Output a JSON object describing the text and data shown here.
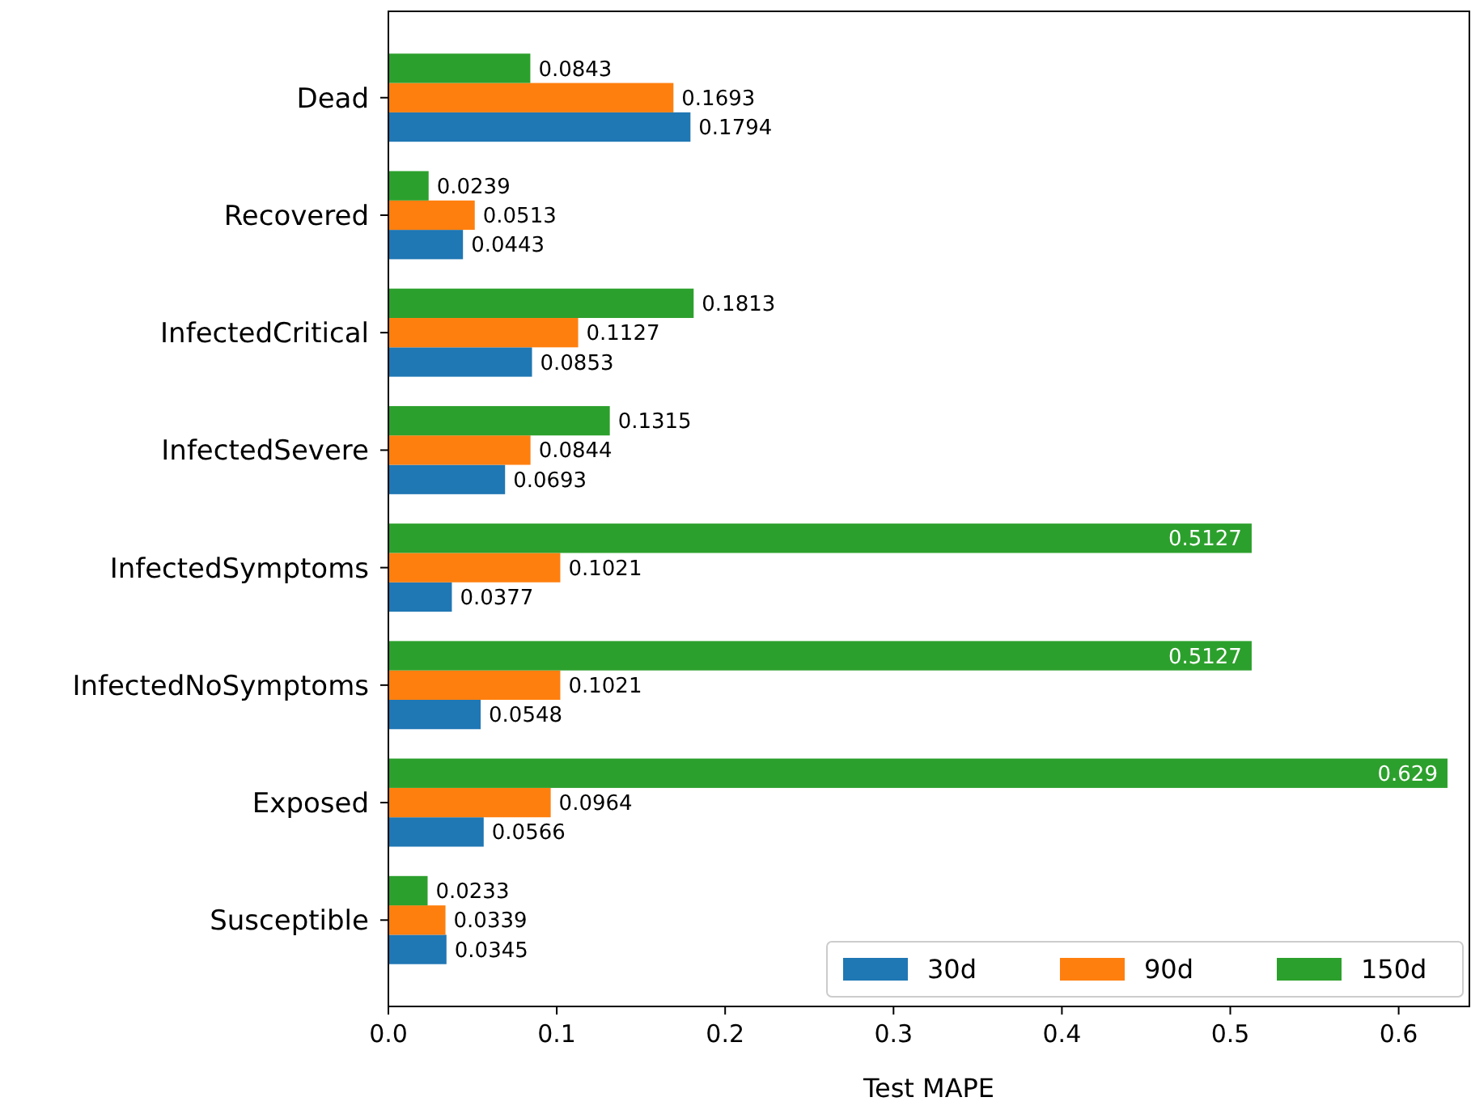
{
  "chart_data": {
    "type": "bar",
    "orientation": "horizontal",
    "xlabel": "Test MAPE",
    "categories": [
      "Dead",
      "Recovered",
      "InfectedCritical",
      "InfectedSevere",
      "InfectedSymptoms",
      "InfectedNoSymptoms",
      "Exposed",
      "Susceptible"
    ],
    "series": [
      {
        "name": "30d",
        "color": "#1f77b4",
        "values": [
          0.1794,
          0.0443,
          0.0853,
          0.0693,
          0.0377,
          0.0548,
          0.0566,
          0.0345
        ]
      },
      {
        "name": "90d",
        "color": "#ff7f0e",
        "values": [
          0.1693,
          0.0513,
          0.1127,
          0.0844,
          0.1021,
          0.1021,
          0.0964,
          0.0339
        ]
      },
      {
        "name": "150d",
        "color": "#2ca02c",
        "values": [
          0.0843,
          0.0239,
          0.1813,
          0.1315,
          0.5127,
          0.5127,
          0.629,
          0.0233
        ]
      }
    ],
    "xlim": [
      0,
      0.642
    ],
    "xticks": [
      {
        "value": 0,
        "label": "0.0"
      },
      0.1,
      0.2,
      0.3,
      0.4,
      0.5,
      0.6
    ],
    "data_labels": true,
    "legend": "bottom right",
    "grid": false
  }
}
